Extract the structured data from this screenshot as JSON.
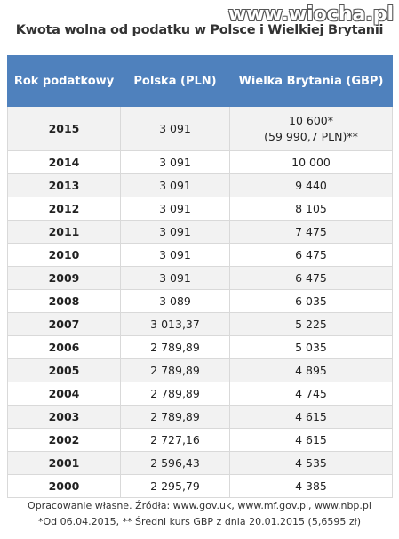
{
  "title": "Kwota wolna od podatku w Polsce i Wielkiej Brytanii",
  "watermark": "www.wiocha.pl",
  "table": {
    "header": [
      "Rok podatkowy",
      "Polska (PLN)",
      "Wielka Brytania (GBP)"
    ],
    "rows": [
      [
        "2015",
        "3 091",
        [
          "10 600*",
          "(59 990,7 PLN)**"
        ]
      ],
      [
        "2014",
        "3 091",
        "10 000"
      ],
      [
        "2013",
        "3 091",
        "9 440"
      ],
      [
        "2012",
        "3 091",
        "8 105"
      ],
      [
        "2011",
        "3 091",
        "7 475"
      ],
      [
        "2010",
        "3 091",
        "6 475"
      ],
      [
        "2009",
        "3 091",
        "6 475"
      ],
      [
        "2008",
        "3 089",
        "6 035"
      ],
      [
        "2007",
        "3 013,37",
        "5 225"
      ],
      [
        "2006",
        "2 789,89",
        "5 035"
      ],
      [
        "2005",
        "2 789,89",
        "4 895"
      ],
      [
        "2004",
        "2 789,89",
        "4 745"
      ],
      [
        "2003",
        "2 789,89",
        "4 615"
      ],
      [
        "2002",
        "2 727,16",
        "4 615"
      ],
      [
        "2001",
        "2 596,43",
        "4 535"
      ],
      [
        "2000",
        "2 295,79",
        "4 385"
      ]
    ]
  },
  "footer": [
    "Opracowanie własne. Źródła: www.gov.uk, www.mf.gov.pl, www.nbp.pl",
    "*Od 06.04.2015, ** Średni kurs GBP z dnia 20.01.2015 (5,6595 zł)"
  ]
}
